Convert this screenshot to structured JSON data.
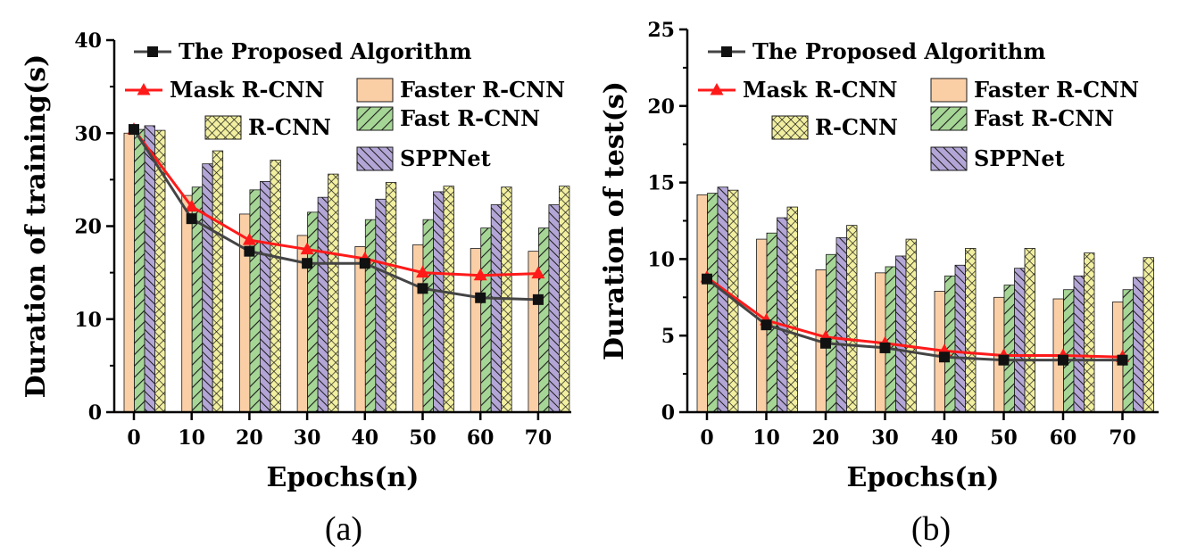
{
  "colors": {
    "Faster R-CNN": "#fbcfa6",
    "Fast R-CNN": "#a6d696",
    "SPPNet": "#b3a6d6",
    "R-CNN": "#f2f0a0",
    "Mask R-CNN": "#ff1a1a",
    "The Proposed Algorithm": "#444444"
  },
  "chart_data": [
    {
      "type": "bar",
      "panel": "(a)",
      "xlabel": "Epochs(n)",
      "ylabel": "Duration of training(s)",
      "x": [
        0,
        10,
        20,
        30,
        40,
        50,
        60,
        70
      ],
      "ylim": [
        0,
        40
      ],
      "yticks": [
        0,
        10,
        20,
        30,
        40
      ],
      "legend_placement": "top",
      "bar_series": [
        {
          "name": "Faster R-CNN",
          "pattern": "none",
          "values": [
            30.0,
            23.3,
            21.3,
            19.0,
            17.8,
            18.0,
            17.6,
            17.3
          ]
        },
        {
          "name": "Fast R-CNN",
          "pattern": "diagonal",
          "values": [
            30.4,
            24.2,
            23.9,
            21.5,
            20.7,
            20.7,
            19.8,
            19.8
          ]
        },
        {
          "name": "SPPNet",
          "pattern": "diagonal-dense",
          "values": [
            30.8,
            26.7,
            24.8,
            23.1,
            22.9,
            23.7,
            22.3,
            22.3
          ]
        },
        {
          "name": "R-CNN",
          "pattern": "crosshatch",
          "values": [
            30.3,
            28.1,
            27.1,
            25.6,
            24.7,
            24.3,
            24.2,
            24.3
          ]
        }
      ],
      "line_series": [
        {
          "name": "Mask R-CNN",
          "marker": "triangle",
          "values": [
            30.4,
            22.1,
            18.5,
            17.5,
            16.5,
            15.0,
            14.7,
            14.9
          ]
        },
        {
          "name": "The Proposed Algorithm",
          "marker": "square",
          "values": [
            30.4,
            20.8,
            17.3,
            16.0,
            16.0,
            13.3,
            12.3,
            12.1
          ]
        }
      ]
    },
    {
      "type": "bar",
      "panel": "(b)",
      "xlabel": "Epochs(n)",
      "ylabel": "Duration of test(s)",
      "x": [
        0,
        10,
        20,
        30,
        40,
        50,
        60,
        70
      ],
      "ylim": [
        0,
        25
      ],
      "yticks": [
        0,
        5,
        10,
        15,
        20,
        25
      ],
      "legend_placement": "top",
      "bar_series": [
        {
          "name": "Faster R-CNN",
          "pattern": "none",
          "values": [
            14.2,
            11.3,
            9.3,
            9.1,
            7.9,
            7.5,
            7.4,
            7.2
          ]
        },
        {
          "name": "Fast R-CNN",
          "pattern": "diagonal",
          "values": [
            14.3,
            11.7,
            10.3,
            9.5,
            8.9,
            8.3,
            8.0,
            8.0
          ]
        },
        {
          "name": "SPPNet",
          "pattern": "diagonal-dense",
          "values": [
            14.7,
            12.7,
            11.4,
            10.2,
            9.6,
            9.4,
            8.9,
            8.8
          ]
        },
        {
          "name": "R-CNN",
          "pattern": "crosshatch",
          "values": [
            14.5,
            13.4,
            12.2,
            11.3,
            10.7,
            10.7,
            10.4,
            10.1
          ]
        }
      ],
      "line_series": [
        {
          "name": "Mask R-CNN",
          "marker": "triangle",
          "values": [
            8.8,
            6.0,
            4.9,
            4.5,
            4.0,
            3.7,
            3.7,
            3.6
          ]
        },
        {
          "name": "The Proposed Algorithm",
          "marker": "square",
          "values": [
            8.7,
            5.7,
            4.5,
            4.2,
            3.6,
            3.4,
            3.4,
            3.4
          ]
        }
      ]
    }
  ]
}
